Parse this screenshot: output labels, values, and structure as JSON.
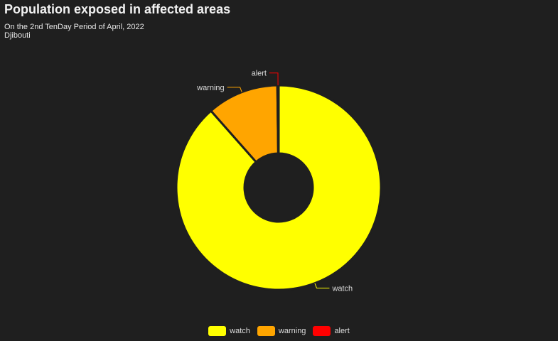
{
  "chart_data": {
    "type": "pie",
    "variant": "donut",
    "title": "Population exposed in affected areas",
    "subtitle_lines": [
      "On the 2nd TenDay Period of April, 2022",
      "Djibouti"
    ],
    "slices": [
      {
        "label": "watch",
        "value": 88.5,
        "color": "#ffff00"
      },
      {
        "label": "warning",
        "value": 11.3,
        "color": "#ffa500"
      },
      {
        "label": "alert",
        "value": 0.2,
        "color": "#ff0000"
      }
    ],
    "legend": {
      "position": "bottom-center"
    },
    "background": "#1f1f1f"
  }
}
